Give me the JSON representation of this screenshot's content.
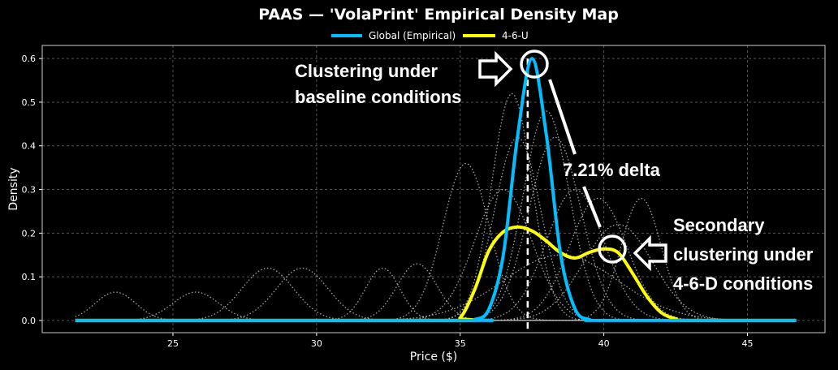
{
  "chart_data": {
    "type": "line",
    "title": "PAAS — 'VolaPrint' Empirical Density Map",
    "xlabel": "Price ($)",
    "ylabel": "Density",
    "xlim": [
      20.45,
      47.7
    ],
    "ylim": [
      -0.028,
      0.63
    ],
    "xticks": [
      25,
      30,
      35,
      40,
      45
    ],
    "yticks": [
      0.0,
      0.1,
      0.2,
      0.3,
      0.4,
      0.5,
      0.6
    ],
    "grid": true,
    "legend_position": "top-center",
    "background_color": "#000000",
    "series": [
      {
        "name": "Global (Empirical)",
        "color": "#00bfff",
        "x": [
          21.6,
          35.0,
          35.5,
          36.0,
          36.5,
          37.0,
          37.5,
          38.0,
          38.5,
          39.0,
          39.5,
          40.0,
          46.7
        ],
        "y": [
          0,
          0,
          0.002,
          0.026,
          0.15,
          0.424,
          0.6,
          0.424,
          0.15,
          0.026,
          0.002,
          0,
          0
        ]
      },
      {
        "name": "4-6-U",
        "color": "#ffff00",
        "x": [
          21.6,
          34.5,
          35.0,
          35.5,
          36.0,
          36.5,
          37.0,
          37.5,
          38.0,
          38.5,
          39.0,
          39.5,
          40.0,
          40.5,
          41.0,
          41.5,
          42.0,
          42.5,
          43.0,
          46.7
        ],
        "y": [
          0,
          0,
          0.006,
          0.07,
          0.16,
          0.203,
          0.214,
          0.205,
          0.182,
          0.155,
          0.143,
          0.156,
          0.164,
          0.155,
          0.108,
          0.055,
          0.018,
          0.004,
          0,
          0
        ]
      }
    ],
    "background_densities": {
      "color": "#cccccc",
      "style": "dotted",
      "curves": [
        {
          "mode": 23.0,
          "peak": 0.065,
          "spread": 0.7
        },
        {
          "mode": 25.8,
          "peak": 0.065,
          "spread": 0.8
        },
        {
          "mode": 28.3,
          "peak": 0.12,
          "spread": 0.9
        },
        {
          "mode": 29.5,
          "peak": 0.12,
          "spread": 0.9
        },
        {
          "mode": 32.3,
          "peak": 0.12,
          "spread": 0.6
        },
        {
          "mode": 33.5,
          "peak": 0.13,
          "spread": 0.7
        },
        {
          "mode": 35.2,
          "peak": 0.36,
          "spread": 0.8
        },
        {
          "mode": 36.5,
          "peak": 0.3,
          "spread": 1.0
        },
        {
          "mode": 36.8,
          "peak": 0.52,
          "spread": 0.7
        },
        {
          "mode": 37.0,
          "peak": 0.42,
          "spread": 0.8
        },
        {
          "mode": 38.0,
          "peak": 0.48,
          "spread": 0.8
        },
        {
          "mode": 38.3,
          "peak": 0.42,
          "spread": 0.9
        },
        {
          "mode": 39.0,
          "peak": 0.3,
          "spread": 1.0
        },
        {
          "mode": 39.8,
          "peak": 0.28,
          "spread": 1.0
        },
        {
          "mode": 40.5,
          "peak": 0.22,
          "spread": 1.2
        },
        {
          "mode": 41.3,
          "peak": 0.28,
          "spread": 0.7
        },
        {
          "mode": 38.5,
          "peak": 0.15,
          "spread": 2.0
        }
      ]
    },
    "reference_line": {
      "x": 37.35,
      "color": "#ffffff",
      "style": "dashed"
    },
    "annotations": {
      "primary": "Clustering under\nbaseline conditions",
      "delta": "7.21% delta",
      "secondary": "Secondary\nclustering under\n4-6-D conditions"
    }
  }
}
